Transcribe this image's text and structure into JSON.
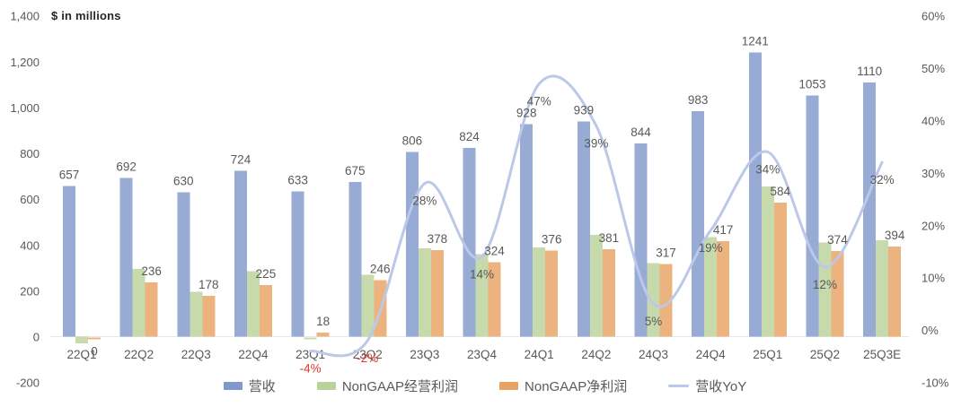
{
  "chart_data": {
    "type": "bar+line",
    "title": "$ in millions",
    "categories": [
      "22Q1",
      "22Q2",
      "22Q3",
      "22Q4",
      "23Q1",
      "23Q2",
      "23Q3",
      "23Q4",
      "24Q1",
      "24Q2",
      "24Q3",
      "24Q4",
      "25Q1",
      "25Q2",
      "25Q3E"
    ],
    "series": [
      {
        "name": "营收",
        "type": "bar",
        "color": "#8098CC",
        "data_labels": true,
        "values": [
          657,
          692,
          630,
          724,
          633,
          675,
          806,
          824,
          928,
          939,
          844,
          983,
          1241,
          1053,
          1110
        ]
      },
      {
        "name": "NonGAAP经营利润",
        "type": "bar",
        "color": "#B9D29A",
        "data_labels": false,
        "values": [
          -30,
          295,
          195,
          285,
          0,
          270,
          385,
          360,
          390,
          445,
          320,
          435,
          655,
          410,
          420
        ]
      },
      {
        "name": "NonGAAP净利润",
        "type": "bar",
        "color": "#E8A263",
        "data_labels": true,
        "values": [
          0,
          236,
          178,
          225,
          18,
          246,
          378,
          324,
          376,
          381,
          317,
          417,
          584,
          374,
          394
        ]
      },
      {
        "name": "营收YoY",
        "type": "line",
        "axis": "right",
        "unit": "%",
        "color": "#BCC8E8",
        "data_labels": true,
        "values": [
          null,
          null,
          null,
          null,
          -4,
          -2,
          28,
          14,
          47,
          39,
          5,
          19,
          34,
          12,
          32
        ]
      }
    ],
    "left_axis": {
      "min": -200,
      "max": 1400,
      "step": 200,
      "tick_labels": [
        "-200",
        "0",
        "200",
        "400",
        "600",
        "800",
        "1,000",
        "1,200",
        "1,400"
      ]
    },
    "right_axis": {
      "min": -10,
      "max": 60,
      "step": 10,
      "tick_labels": [
        "-10%",
        "0%",
        "10%",
        "20%",
        "30%",
        "40%",
        "50%",
        "60%"
      ]
    },
    "legend_position": "bottom",
    "grid": false
  },
  "colors": {
    "label": "#595959",
    "negative_label": "#E0392E",
    "axis_text": "#595959",
    "axis_line": "#E8E8E8",
    "title_text": "#262626",
    "background": "#FFFFFF"
  }
}
